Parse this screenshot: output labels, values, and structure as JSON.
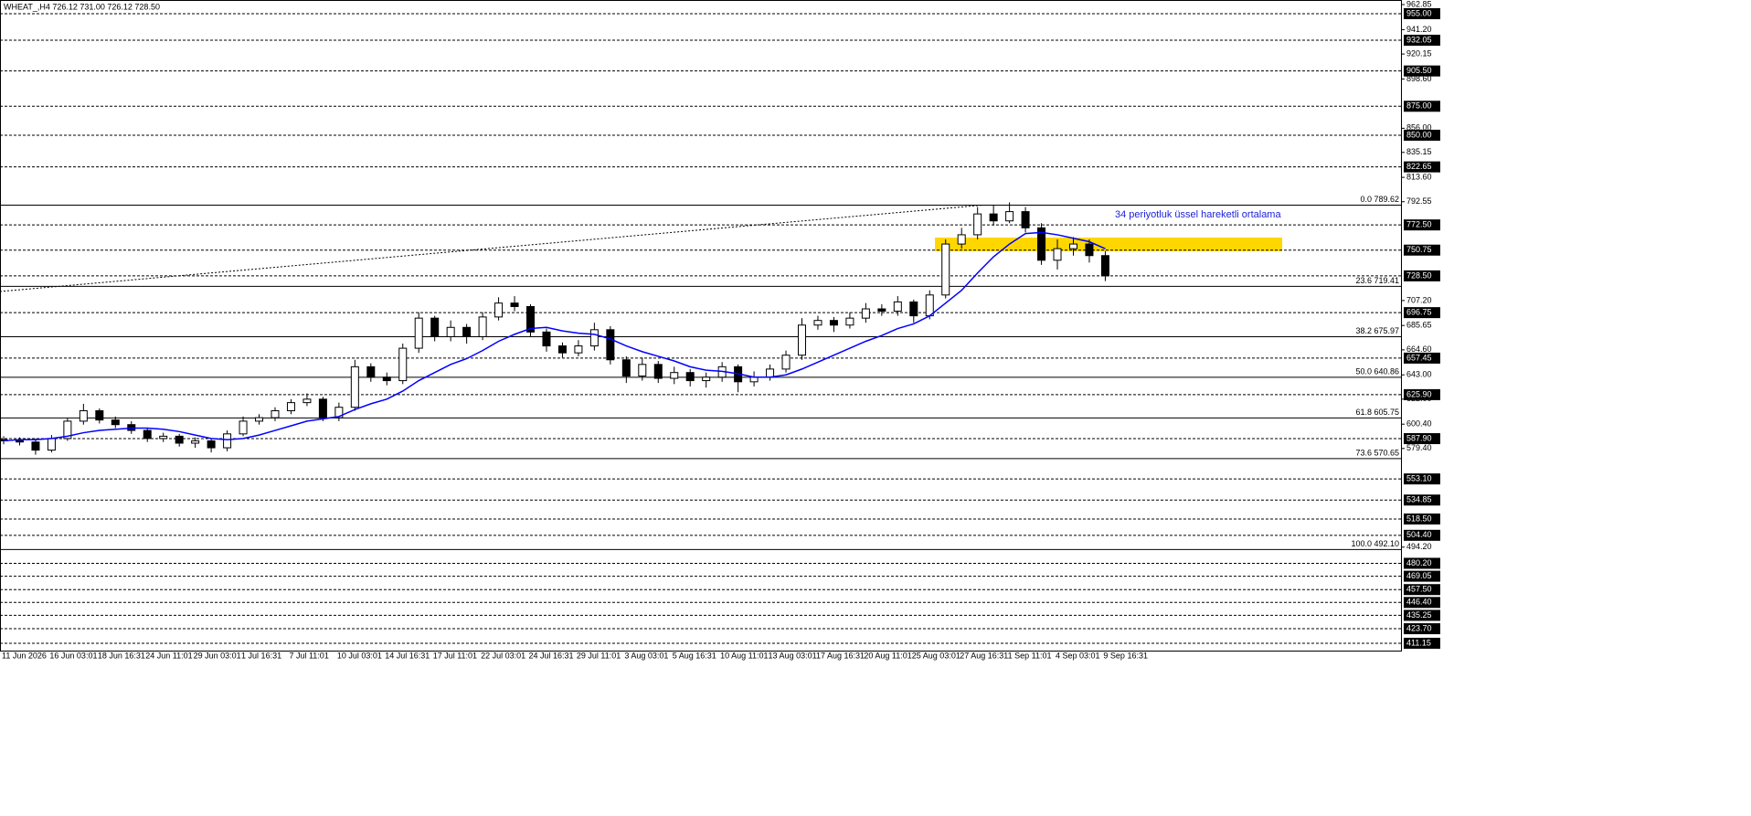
{
  "chart_data": {
    "type": "candlestick",
    "title": "WHEAT_,H4  726.12 731.00 726.12 728.50",
    "annotation": "34 periyotluk üssel hareketli ortalama",
    "categories": [
      "11 Jun 2026",
      null,
      null,
      "16 Jun 03:01",
      null,
      null,
      "18 Jun 16:31",
      null,
      null,
      "24 Jun 11:01",
      null,
      null,
      "29 Jun 03:01",
      null,
      null,
      "1 Jul 16:31",
      null,
      null,
      "7 Jul 11:01",
      null,
      null,
      "10 Jul 03:01",
      null,
      null,
      "14 Jul 16:31",
      null,
      null,
      "17 Jul 11:01",
      null,
      null,
      "22 Jul 03:01",
      null,
      null,
      "24 Jul 16:31",
      null,
      null,
      "29 Jul 11:01",
      null,
      null,
      "3 Aug 03:01",
      null,
      null,
      "5 Aug 16:31",
      null,
      null,
      "10 Aug 11:01",
      null,
      null,
      "13 Aug 03:01",
      null,
      null,
      "17 Aug 16:31",
      null,
      null,
      "20 Aug 11:01",
      null,
      null,
      "25 Aug 03:01",
      null,
      null,
      "27 Aug 16:31",
      null,
      null,
      "1 Sep 11:01",
      null,
      null,
      "4 Sep 03:01",
      null,
      null,
      "9 Sep 16:31"
    ],
    "open": [
      587,
      586,
      585,
      578,
      588,
      603,
      612,
      604,
      600,
      595,
      588,
      590,
      584,
      586,
      580,
      592,
      603,
      606,
      612,
      619,
      622,
      606,
      615,
      650,
      641,
      638,
      666,
      692,
      676,
      684,
      676,
      693,
      705,
      702,
      680,
      668,
      662,
      668,
      682,
      656,
      642,
      652,
      640,
      645,
      638,
      641,
      650,
      637,
      641,
      648,
      660,
      686,
      690,
      686,
      692,
      700,
      698,
      706,
      694,
      712,
      756,
      764,
      782,
      776,
      784,
      770,
      742,
      752,
      756,
      746
    ],
    "high": [
      590,
      589,
      588,
      591,
      606,
      618,
      614,
      607,
      603,
      597,
      593,
      592,
      589,
      588,
      595,
      607,
      609,
      615,
      622,
      627,
      624,
      619,
      656,
      653,
      645,
      670,
      697,
      694,
      690,
      687,
      697,
      710,
      711,
      704,
      683,
      671,
      673,
      688,
      685,
      659,
      658,
      655,
      650,
      648,
      645,
      654,
      652,
      646,
      652,
      664,
      692,
      694,
      693,
      697,
      705,
      704,
      711,
      708,
      716,
      760,
      770,
      788,
      790,
      792,
      788,
      774,
      760,
      762,
      760,
      750
    ],
    "low": [
      583,
      582,
      574,
      576,
      586,
      600,
      601,
      597,
      592,
      585,
      585,
      581,
      580,
      576,
      577,
      590,
      600,
      603,
      609,
      616,
      603,
      603,
      612,
      637,
      634,
      635,
      662,
      672,
      672,
      670,
      673,
      690,
      698,
      676,
      663,
      658,
      659,
      664,
      652,
      636,
      638,
      636,
      635,
      633,
      632,
      637,
      628,
      633,
      638,
      645,
      656,
      682,
      680,
      683,
      688,
      694,
      694,
      688,
      691,
      709,
      752,
      760,
      772,
      774,
      766,
      738,
      734,
      746,
      740,
      724
    ],
    "close": [
      586,
      585,
      578,
      588,
      603,
      612,
      604,
      600,
      595,
      588,
      590,
      584,
      586,
      580,
      592,
      603,
      606,
      612,
      619,
      622,
      606,
      615,
      650,
      641,
      638,
      666,
      692,
      676,
      684,
      676,
      693,
      705,
      702,
      680,
      668,
      662,
      668,
      682,
      656,
      642,
      652,
      640,
      645,
      638,
      641,
      650,
      637,
      641,
      648,
      660,
      686,
      690,
      686,
      692,
      700,
      698,
      706,
      694,
      712,
      756,
      764,
      782,
      776,
      784,
      770,
      742,
      752,
      756,
      746,
      728.5
    ],
    "ema": {
      "color": "#0000ff",
      "values": [
        586,
        587,
        587,
        588,
        590,
        593,
        595,
        596,
        597,
        597,
        596,
        594,
        591,
        588,
        587,
        588,
        591,
        595,
        599,
        603,
        605,
        607,
        613,
        618,
        622,
        629,
        638,
        645,
        652,
        657,
        664,
        672,
        678,
        683,
        684,
        681,
        679,
        678,
        674,
        668,
        663,
        659,
        655,
        650,
        647,
        646,
        644,
        641,
        641,
        643,
        648,
        654,
        660,
        666,
        672,
        677,
        683,
        687,
        694,
        705,
        716,
        731,
        745,
        756,
        765,
        766,
        764,
        761,
        758,
        752
      ]
    },
    "ylim": [
      404.8,
      966.8
    ],
    "yticks": [
      {
        "value": 962.85,
        "label": "962.85"
      },
      {
        "value": 941.2,
        "label": "941.20"
      },
      {
        "value": 920.15,
        "label": "920.15"
      },
      {
        "value": 898.6,
        "label": "898.60"
      },
      {
        "value": 856,
        "label": "856.00"
      },
      {
        "value": 835.15,
        "label": "835.15"
      },
      {
        "value": 813.6,
        "label": "813.60"
      },
      {
        "value": 792.55,
        "label": "792.55"
      },
      {
        "value": 707.2,
        "label": "707.20"
      },
      {
        "value": 685.65,
        "label": "685.65"
      },
      {
        "value": 664.6,
        "label": "664.60"
      },
      {
        "value": 643,
        "label": "643.00"
      },
      {
        "value": 622,
        "label": "622.00"
      },
      {
        "value": 600.4,
        "label": "600.40"
      },
      {
        "value": 579.4,
        "label": "579.40"
      },
      {
        "value": 494.2,
        "label": "494.20"
      }
    ],
    "levels": [
      {
        "value": 955,
        "label": "955.00"
      },
      {
        "value": 932.05,
        "label": "932.05"
      },
      {
        "value": 905.5,
        "label": "905.50"
      },
      {
        "value": 875,
        "label": "875.00"
      },
      {
        "value": 850,
        "label": "850.00"
      },
      {
        "value": 822.65,
        "label": "822.65"
      },
      {
        "value": 772.5,
        "label": "772.50"
      },
      {
        "value": 750.75,
        "label": "750.75"
      },
      {
        "value": 728.5,
        "label": "728.50"
      },
      {
        "value": 696.75,
        "label": "696.75"
      },
      {
        "value": 657.45,
        "label": "657.45"
      },
      {
        "value": 625.9,
        "label": "625.90"
      },
      {
        "value": 587.9,
        "label": "587.90"
      },
      {
        "value": 553.1,
        "label": "553.10"
      },
      {
        "value": 534.85,
        "label": "534.85"
      },
      {
        "value": 518.5,
        "label": "518.50"
      },
      {
        "value": 504.4,
        "label": "504.40"
      },
      {
        "value": 480.2,
        "label": "480.20"
      },
      {
        "value": 469.05,
        "label": "469.05"
      },
      {
        "value": 457.5,
        "label": "457.50"
      },
      {
        "value": 446.4,
        "label": "446.40"
      },
      {
        "value": 435.25,
        "label": "435.25"
      },
      {
        "value": 423.7,
        "label": "423.70"
      },
      {
        "value": 411.15,
        "label": "411.15"
      }
    ],
    "fib": [
      {
        "value": 789.62,
        "label": "0.0 789.62"
      },
      {
        "value": 719.41,
        "label": "23.6 719.41"
      },
      {
        "value": 675.97,
        "label": "38.2 675.97"
      },
      {
        "value": 640.86,
        "label": "50.0 640.86"
      },
      {
        "value": 605.75,
        "label": "61.8 605.75"
      },
      {
        "value": 570.65,
        "label": "73.6 570.65"
      },
      {
        "value": 492.1,
        "label": "100.0 492.10"
      }
    ],
    "trendline": [
      715,
      789.62
    ],
    "zone": {
      "values": [
        749.8,
        761.6
      ],
      "color": "#ffd700"
    }
  }
}
